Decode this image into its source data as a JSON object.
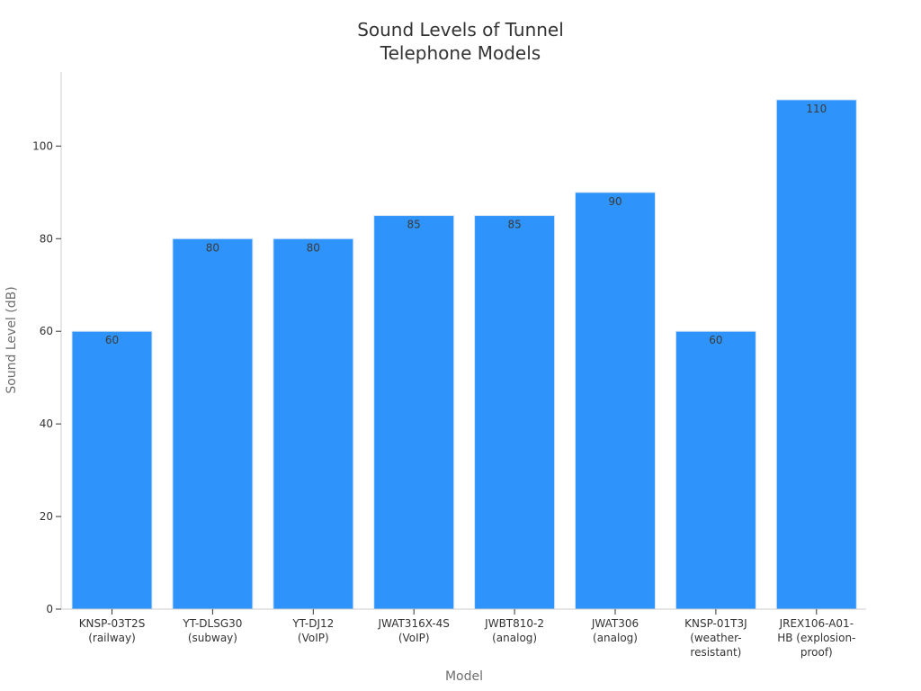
{
  "chart_data": {
    "type": "bar",
    "title": "Sound Levels of Tunnel Telephone Models",
    "title_lines": [
      "Sound Levels of Tunnel",
      "Telephone Models"
    ],
    "xlabel": "Model",
    "ylabel": "Sound Level (dB)",
    "categories": [
      "KNSP-03T2S (railway)",
      "YT-DLSG30 (subway)",
      "YT-DJ12 (VoIP)",
      "JWAT316X-4S (VoIP)",
      "JWBT810-2 (analog)",
      "JWAT306 (analog)",
      "KNSP-01T3J (weather-resistant)",
      "JREX106-A01-HB (explosion-proof)"
    ],
    "category_label_lines": [
      [
        "KNSP-03T2S",
        "(railway)"
      ],
      [
        "YT-DLSG30",
        "(subway)"
      ],
      [
        "YT-DJ12",
        "(VoIP)"
      ],
      [
        "JWAT316X-4S",
        "(VoIP)"
      ],
      [
        "JWBT810-2",
        "(analog)"
      ],
      [
        "JWAT306",
        "(analog)"
      ],
      [
        "KNSP-01T3J",
        "(weather-",
        "resistant)"
      ],
      [
        "JREX106-A01-",
        "HB (explosion-",
        "proof)"
      ]
    ],
    "values": [
      60,
      80,
      80,
      85,
      85,
      90,
      60,
      110
    ],
    "data_labels": [
      "60",
      "80",
      "80",
      "85",
      "85",
      "90",
      "60",
      "110"
    ],
    "ylim": [
      0,
      116
    ],
    "yticks": [
      0,
      20,
      40,
      60,
      80,
      100
    ],
    "grid": false,
    "legend": "none",
    "bar_color": "#2e93fa",
    "bar_edge_color": "#d6e6f7",
    "axis_color": "#cccccc",
    "text_color": "#333333"
  }
}
